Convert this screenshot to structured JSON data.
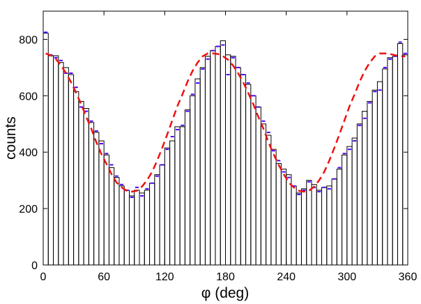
{
  "chart_data": {
    "type": "bar",
    "subtype": "histogram",
    "xlabel": "φ  (deg)",
    "ylabel": "counts",
    "xlim": [
      0,
      360
    ],
    "ylim": [
      0,
      900
    ],
    "xticks": [
      0,
      60,
      120,
      180,
      240,
      300,
      360
    ],
    "yticks": [
      0,
      200,
      400,
      600,
      800
    ],
    "grid": false,
    "bin_width": 5,
    "bin_edges_start": [
      0,
      5,
      10,
      15,
      20,
      25,
      30,
      35,
      40,
      45,
      50,
      55,
      60,
      65,
      70,
      75,
      80,
      85,
      90,
      95,
      100,
      105,
      110,
      115,
      120,
      125,
      130,
      135,
      140,
      145,
      150,
      155,
      160,
      165,
      170,
      175,
      180,
      185,
      190,
      195,
      200,
      205,
      210,
      215,
      220,
      225,
      230,
      235,
      240,
      245,
      250,
      255,
      260,
      265,
      270,
      275,
      280,
      285,
      290,
      295,
      300,
      305,
      310,
      315,
      320,
      325,
      330,
      335,
      340,
      345,
      350,
      355
    ],
    "series": [
      {
        "values": [
          822,
          742,
          742,
          718,
          700,
          675,
          615,
          580,
          555,
          505,
          470,
          440,
          390,
          345,
          310,
          280,
          265,
          245,
          265,
          255,
          265,
          290,
          320,
          355,
          415,
          440,
          490,
          490,
          550,
          600,
          660,
          700,
          740,
          760,
          775,
          795,
          745,
          740,
          700,
          675,
          640,
          600,
          560,
          500,
          460,
          410,
          360,
          340,
          320,
          280,
          255,
          270,
          300,
          285,
          265,
          275,
          280,
          305,
          340,
          390,
          420,
          450,
          500,
          545,
          580,
          620,
          650,
          695,
          735,
          740,
          785,
          745
        ]
      },
      {
        "values": [
          825,
          745,
          735,
          725,
          680,
          680,
          630,
          560,
          545,
          510,
          475,
          430,
          395,
          355,
          315,
          285,
          265,
          240,
          275,
          245,
          270,
          290,
          315,
          355,
          410,
          455,
          480,
          495,
          545,
          605,
          645,
          695,
          730,
          760,
          775,
          780,
          675,
          735,
          700,
          675,
          645,
          600,
          560,
          510,
          470,
          405,
          370,
          330,
          310,
          280,
          250,
          265,
          295,
          275,
          260,
          275,
          270,
          305,
          345,
          395,
          410,
          440,
          495,
          520,
          575,
          615,
          620,
          700,
          730,
          740,
          790,
          750
        ]
      },
      {
        "values": [
          750,
          743,
          730,
          708,
          680,
          648,
          610,
          570,
          525,
          483,
          435,
          393,
          358,
          322,
          292,
          275,
          263,
          260,
          263,
          278,
          300,
          330,
          370,
          415,
          463,
          513,
          563,
          605,
          650,
          688,
          718,
          740,
          750,
          750,
          748,
          740,
          728,
          707,
          680,
          648,
          610,
          570,
          525,
          483,
          435,
          393,
          355,
          322,
          292,
          275,
          263,
          260,
          263,
          278,
          300,
          330,
          370,
          415,
          463,
          513,
          563,
          605,
          650,
          688,
          718,
          740,
          750,
          750,
          748,
          744,
          740,
          740
        ]
      }
    ],
    "colors": {
      "histogram": "#000000",
      "data_points": "#4b00ff",
      "fit_curve": "#ee1111"
    }
  }
}
